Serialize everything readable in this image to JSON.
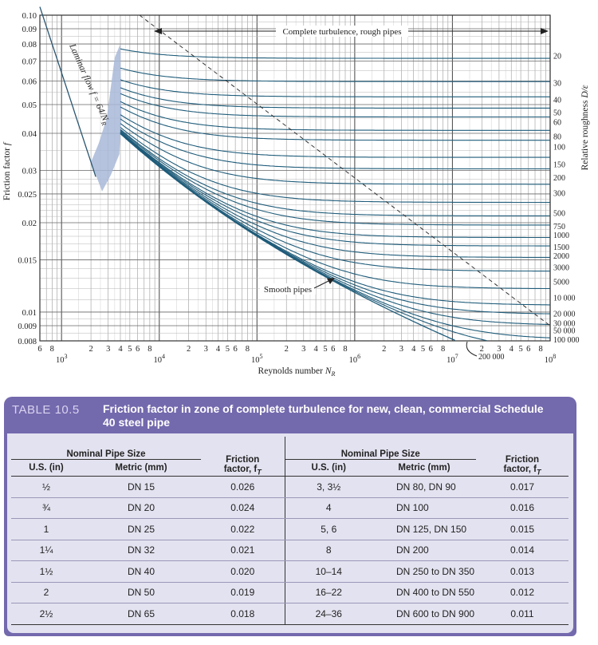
{
  "chart_data": {
    "type": "line",
    "title": "",
    "xlabel": "Reynolds number N_R",
    "ylabel": "Friction factor f",
    "y2label": "Relative roughness D/ε",
    "xscale": "log",
    "yscale": "log",
    "xlim": [
      600,
      100000000
    ],
    "ylim": [
      0.008,
      0.1
    ],
    "grid": true,
    "x_ticks": [
      {
        "v": 600,
        "t": "6"
      },
      {
        "v": 800,
        "t": "8"
      },
      {
        "v": 2000,
        "t": "2"
      },
      {
        "v": 3000,
        "t": "3"
      },
      {
        "v": 4000,
        "t": "4"
      },
      {
        "v": 5000,
        "t": "5"
      },
      {
        "v": 6000,
        "t": "6"
      },
      {
        "v": 8000,
        "t": "8"
      },
      {
        "v": 20000,
        "t": "2"
      },
      {
        "v": 30000,
        "t": "3"
      },
      {
        "v": 40000,
        "t": "4"
      },
      {
        "v": 50000,
        "t": "5"
      },
      {
        "v": 60000,
        "t": "6"
      },
      {
        "v": 80000,
        "t": "8"
      },
      {
        "v": 200000,
        "t": "2"
      },
      {
        "v": 300000,
        "t": "3"
      },
      {
        "v": 400000,
        "t": "4"
      },
      {
        "v": 500000,
        "t": "5"
      },
      {
        "v": 600000,
        "t": "6"
      },
      {
        "v": 800000,
        "t": "8"
      },
      {
        "v": 2000000,
        "t": "2"
      },
      {
        "v": 3000000,
        "t": "3"
      },
      {
        "v": 4000000,
        "t": "4"
      },
      {
        "v": 5000000,
        "t": "5"
      },
      {
        "v": 6000000,
        "t": "6"
      },
      {
        "v": 8000000,
        "t": "8"
      },
      {
        "v": 20000000,
        "t": "2"
      },
      {
        "v": 30000000,
        "t": "3"
      },
      {
        "v": 40000000,
        "t": "4"
      },
      {
        "v": 50000000,
        "t": "5"
      },
      {
        "v": 60000000,
        "t": "6"
      },
      {
        "v": 80000000,
        "t": "8"
      }
    ],
    "x_decades": [
      {
        "v": 1000,
        "base": "10",
        "exp": "3"
      },
      {
        "v": 10000,
        "base": "10",
        "exp": "4"
      },
      {
        "v": 100000,
        "base": "10",
        "exp": "5"
      },
      {
        "v": 1000000,
        "base": "10",
        "exp": "6"
      },
      {
        "v": 10000000,
        "base": "10",
        "exp": "7"
      },
      {
        "v": 100000000,
        "base": "10",
        "exp": "8"
      }
    ],
    "y_ticks": [
      {
        "v": 0.1,
        "t": "0.10"
      },
      {
        "v": 0.09,
        "t": "0.09"
      },
      {
        "v": 0.08,
        "t": "0.08"
      },
      {
        "v": 0.07,
        "t": "0.07"
      },
      {
        "v": 0.06,
        "t": "0.06"
      },
      {
        "v": 0.05,
        "t": "0.05"
      },
      {
        "v": 0.04,
        "t": "0.04"
      },
      {
        "v": 0.03,
        "t": "0.03"
      },
      {
        "v": 0.025,
        "t": "0.025"
      },
      {
        "v": 0.02,
        "t": "0.02"
      },
      {
        "v": 0.015,
        "t": "0.015"
      },
      {
        "v": 0.01,
        "t": "0.01"
      },
      {
        "v": 0.009,
        "t": "0.009"
      },
      {
        "v": 0.008,
        "t": "0.008"
      }
    ],
    "roughness_series": [
      {
        "name": "20",
        "f": 0.0731
      },
      {
        "name": "30",
        "f": 0.0592
      },
      {
        "name": "40",
        "f": 0.0521
      },
      {
        "name": "50",
        "f": 0.0472
      },
      {
        "name": "60",
        "f": 0.0438
      },
      {
        "name": "80",
        "f": 0.0392
      },
      {
        "name": "100",
        "f": 0.0361
      },
      {
        "name": "150",
        "f": 0.0315
      },
      {
        "name": "200",
        "f": 0.0285
      },
      {
        "name": "300",
        "f": 0.0252
      },
      {
        "name": "500",
        "f": 0.0216
      },
      {
        "name": "750",
        "f": 0.0195
      },
      {
        "name": "1000",
        "f": 0.0182
      },
      {
        "name": "1500",
        "f": 0.0166
      },
      {
        "name": "2000",
        "f": 0.0155
      },
      {
        "name": "3000",
        "f": 0.0142
      },
      {
        "name": "5000",
        "f": 0.0127
      },
      {
        "name": "10 000",
        "f": 0.0112
      },
      {
        "name": "20 000",
        "f": 0.0099
      },
      {
        "name": "30 000",
        "f": 0.0092
      },
      {
        "name": "50 000",
        "f": 0.0087
      },
      {
        "name": "100 000",
        "f": 0.0081
      },
      {
        "name": "200 000",
        "f": 0.0077
      }
    ],
    "laminar_label": "Laminar flow f = 64/N_R",
    "annotations": {
      "complete_turbulence": "Complete turbulence, rough pipes",
      "smooth_pipes": "Smooth pipes"
    }
  },
  "table": {
    "label": "TABLE 10.5",
    "title": "Friction factor in zone of complete turbulence for new, clean, commercial Schedule 40 steel pipe",
    "group_header": "Nominal Pipe Size",
    "col_us": "U.S. (in)",
    "col_metric": "Metric (mm)",
    "col_friction_1": "Friction",
    "col_friction_2": "factor, f",
    "col_friction_sub": "T",
    "left_rows": [
      {
        "us": "½",
        "metric": "DN 15",
        "f": "0.026"
      },
      {
        "us": "¾",
        "metric": "DN 20",
        "f": "0.024"
      },
      {
        "us": "1",
        "metric": "DN 25",
        "f": "0.022"
      },
      {
        "us": "1¼",
        "metric": "DN 32",
        "f": "0.021"
      },
      {
        "us": "1½",
        "metric": "DN 40",
        "f": "0.020"
      },
      {
        "us": "2",
        "metric": "DN 50",
        "f": "0.019"
      },
      {
        "us": "2½",
        "metric": "DN 65",
        "f": "0.018"
      }
    ],
    "right_rows": [
      {
        "us": "3, 3½",
        "metric": "DN 80, DN 90",
        "f": "0.017"
      },
      {
        "us": "4",
        "metric": "DN 100",
        "f": "0.016"
      },
      {
        "us": "5, 6",
        "metric": "DN 125, DN 150",
        "f": "0.015"
      },
      {
        "us": "8",
        "metric": "DN 200",
        "f": "0.014"
      },
      {
        "us": "10–14",
        "metric": "DN 250 to DN 350",
        "f": "0.013"
      },
      {
        "us": "16–22",
        "metric": "DN 400 to DN 550",
        "f": "0.012"
      },
      {
        "us": "24–36",
        "metric": "DN 600 to DN 900",
        "f": "0.011"
      }
    ]
  }
}
